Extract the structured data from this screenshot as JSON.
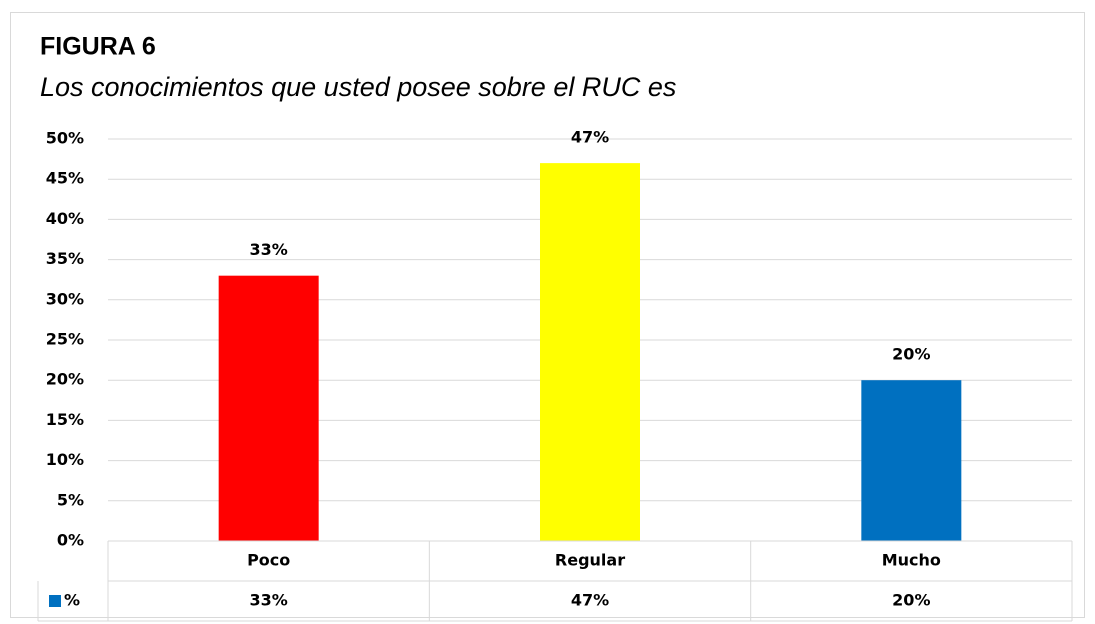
{
  "chart_data": {
    "type": "bar",
    "title": "FIGURA 6",
    "subtitle": "Los conocimientos que usted posee sobre el RUC es",
    "categories": [
      "Poco",
      "Regular",
      "Mucho"
    ],
    "series": [
      {
        "name": "%",
        "color": "#0070c0",
        "colors": [
          "#ff0000",
          "#ffff00",
          "#0070c0"
        ],
        "values": [
          33,
          47,
          20
        ],
        "value_labels": [
          "33%",
          "47%",
          "20%"
        ]
      }
    ],
    "ylim": [
      0,
      50
    ],
    "yticks": [
      {
        "value": 0,
        "label": "0%"
      },
      {
        "value": 5,
        "label": "5%"
      },
      {
        "value": 10,
        "label": "10%"
      },
      {
        "value": 15,
        "label": "15%"
      },
      {
        "value": 20,
        "label": "20%"
      },
      {
        "value": 25,
        "label": "25%"
      },
      {
        "value": 30,
        "label": "30%"
      },
      {
        "value": 35,
        "label": "35%"
      },
      {
        "value": 40,
        "label": "40%"
      },
      {
        "value": 45,
        "label": "45%"
      },
      {
        "value": 50,
        "label": "50%"
      }
    ],
    "grid": true,
    "data_table": true
  }
}
